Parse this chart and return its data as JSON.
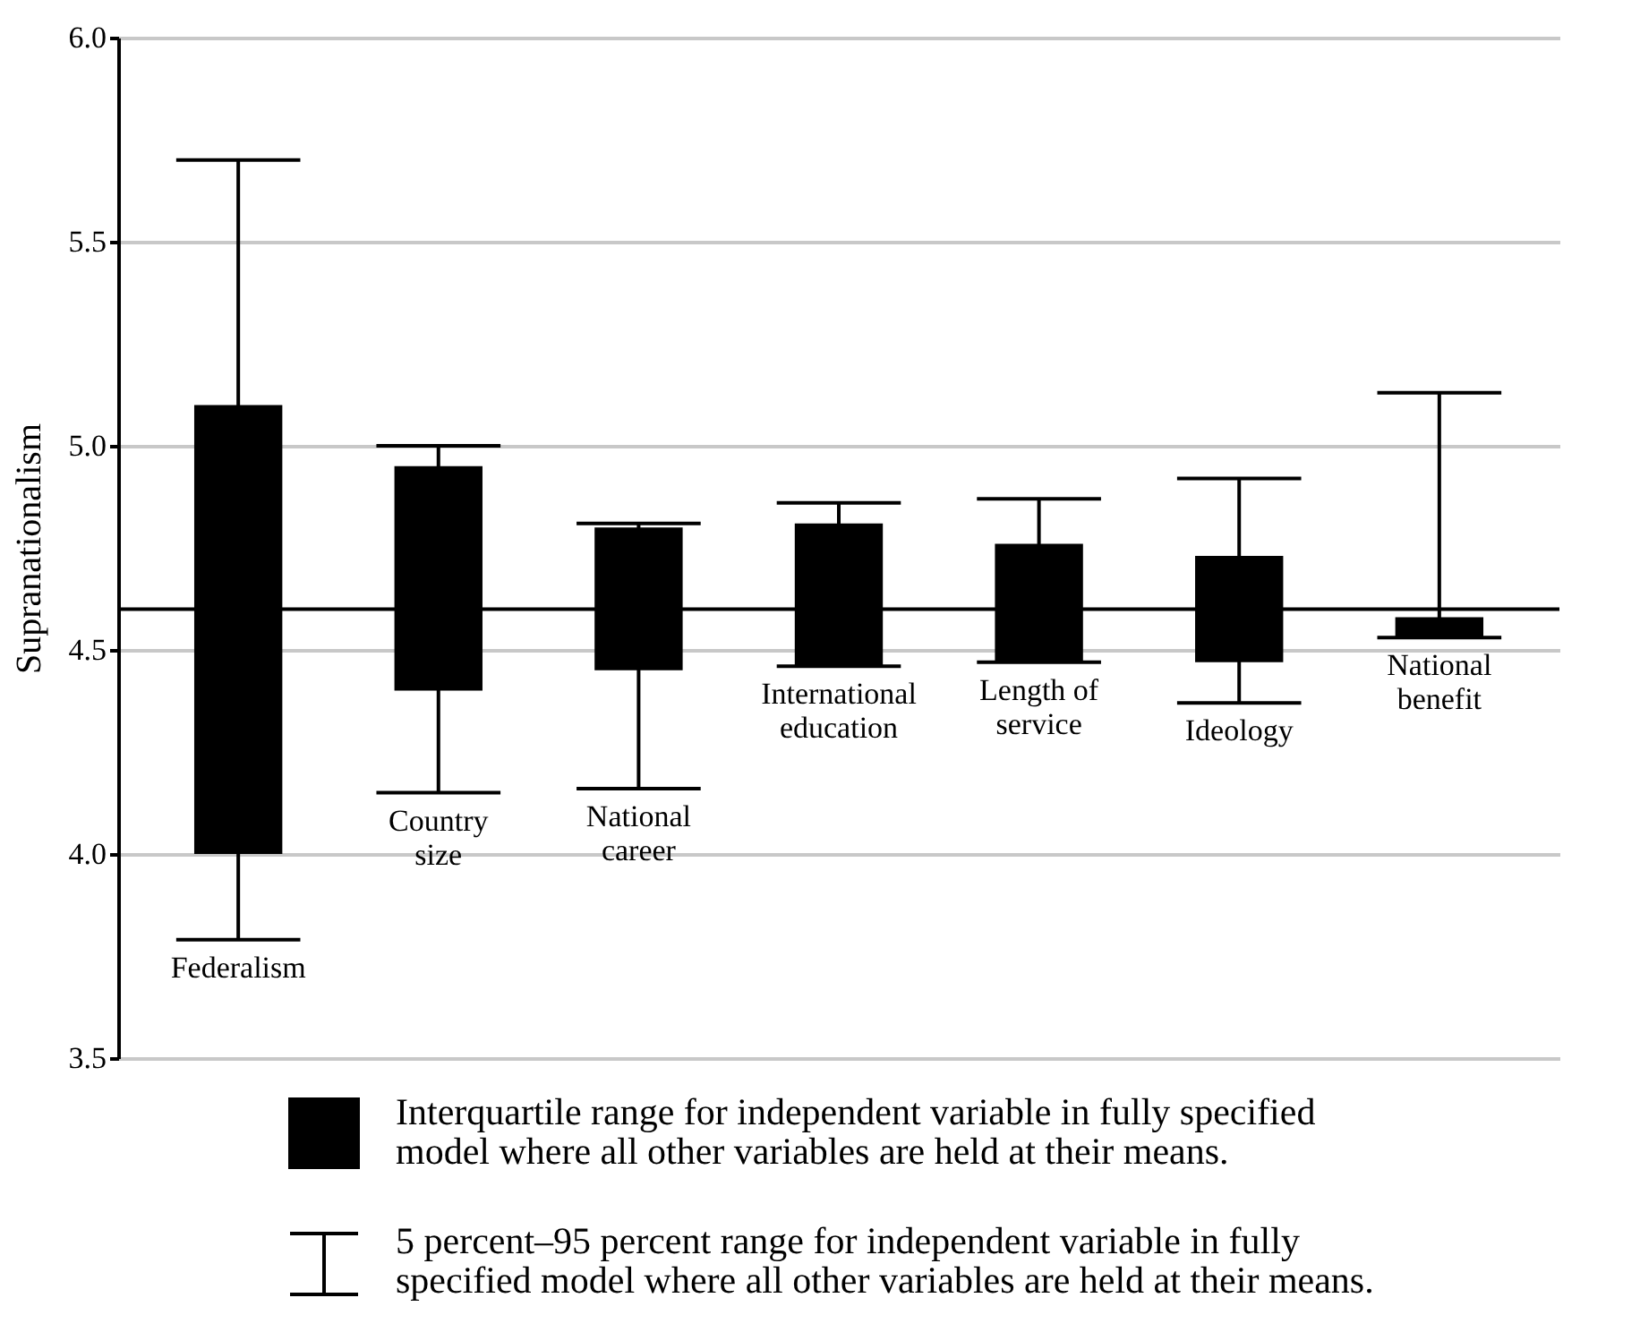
{
  "chart_data": {
    "type": "bar",
    "ylabel": "Supranationalism",
    "categories": [
      "Federalism",
      "Country size",
      "National career",
      "International education",
      "Length of service",
      "Ideology",
      "National benefit"
    ],
    "series": [
      {
        "name": "Interquartile range for independent variable in fully specified model where all other variables are held at their means.",
        "color": "#000000",
        "base": [
          4.0,
          4.4,
          4.45,
          4.46,
          4.47,
          4.47,
          4.53
        ],
        "values": [
          1.1,
          0.55,
          0.35,
          0.35,
          0.29,
          0.26,
          0.05
        ],
        "errors": [
          [
            3.79,
            5.7
          ],
          [
            4.15,
            5.0
          ],
          [
            4.16,
            4.81
          ],
          [
            4.46,
            4.86
          ],
          [
            4.47,
            4.87
          ],
          [
            4.37,
            4.92
          ],
          [
            4.53,
            5.13
          ]
        ]
      }
    ],
    "annotations": [
      "5 percent–95 percent range for independent variable in fully specified model where all other variables are held at their means."
    ],
    "ref_lines": [
      {
        "axis": "y",
        "value": 4.6,
        "color": "#000000"
      }
    ],
    "ylim": [
      3.5,
      6.0
    ],
    "yticks": [
      {
        "value": 3.5,
        "label": "3.5"
      },
      {
        "value": 4,
        "label": "4.0"
      },
      {
        "value": 4.5,
        "label": "4.5"
      },
      {
        "value": 5,
        "label": "5.0"
      },
      {
        "value": 5.5,
        "label": "5.5"
      },
      {
        "value": 6,
        "label": "6.0"
      }
    ],
    "grid": "y",
    "legend": "bottom",
    "tick_labels": "y"
  }
}
